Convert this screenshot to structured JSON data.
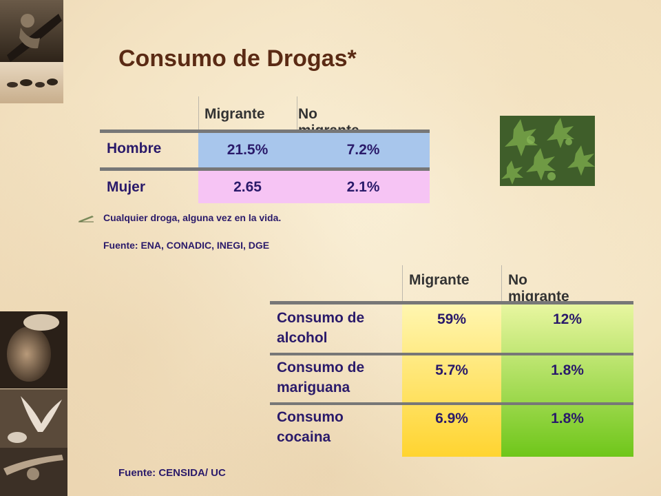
{
  "title": "Consumo de Drogas*",
  "table1": {
    "headers": [
      "Migrante",
      "No migrante"
    ],
    "rows": [
      {
        "label": "Hombre",
        "values": [
          "21.5%",
          "7.2%"
        ]
      },
      {
        "label": "Mujer",
        "values": [
          "2.65",
          "2.1%"
        ]
      }
    ]
  },
  "note": {
    "line1": "Cualquier droga, alguna vez en la vida.",
    "line2": "Fuente: ENA, CONADIC, INEGI, DGE"
  },
  "table2": {
    "headers": [
      "Migrante",
      "No migrante"
    ],
    "rows": [
      {
        "label": "Consumo de alcohol",
        "values": [
          "59%",
          "12%"
        ]
      },
      {
        "label": "Consumo de mariguana",
        "values": [
          "5.7%",
          "1.8%"
        ]
      },
      {
        "label": "Consumo cocaina",
        "values": [
          "6.9%",
          "1.8%"
        ]
      }
    ]
  },
  "source2": "Fuente: CENSIDA/ UC",
  "colors": {
    "title": "#5a2a14",
    "text": "#2a1a6a",
    "hombre_row": "#a8c6ec",
    "mujer_row": "#f6c4f4",
    "migrante_col": "#ffe066",
    "no_migrante_col": "#9ad63a"
  }
}
